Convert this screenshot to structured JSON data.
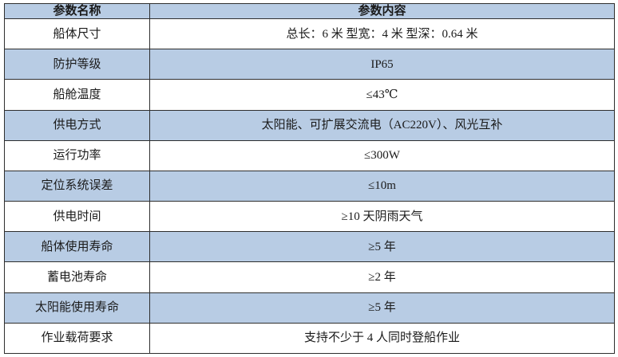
{
  "document": {
    "table": {
      "columns": [
        {
          "label": "参数名称"
        },
        {
          "label": "参数内容"
        }
      ],
      "rows": [
        {
          "param": "船体尺寸",
          "value": "总长：6 米 型宽：4 米 型深：0.64 米"
        },
        {
          "param": "防护等级",
          "value": "IP65"
        },
        {
          "param": "船舱温度",
          "value": "≤43℃"
        },
        {
          "param": "供电方式",
          "value": "太阳能、可扩展交流电（AC220V）、风光互补"
        },
        {
          "param": "运行功率",
          "value": "≤300W"
        },
        {
          "param": "定位系统误差",
          "value": "≤10m"
        },
        {
          "param": "供电时间",
          "value": "≥10 天阴雨天气"
        },
        {
          "param": "船体使用寿命",
          "value": "≥5 年"
        },
        {
          "param": "蓄电池寿命",
          "value": "≥2 年"
        },
        {
          "param": "太阳能使用寿命",
          "value": "≥5 年"
        },
        {
          "param": "作业载荷要求",
          "value": "支持不少于 4 人同时登船作业"
        }
      ]
    },
    "colors": {
      "header_bg": "#B8CCE4",
      "stripe_bg": "#B8CCE4",
      "row_bg": "#FFFFFF",
      "border": "#2E2E2E",
      "text": "#1A1A1A"
    }
  }
}
